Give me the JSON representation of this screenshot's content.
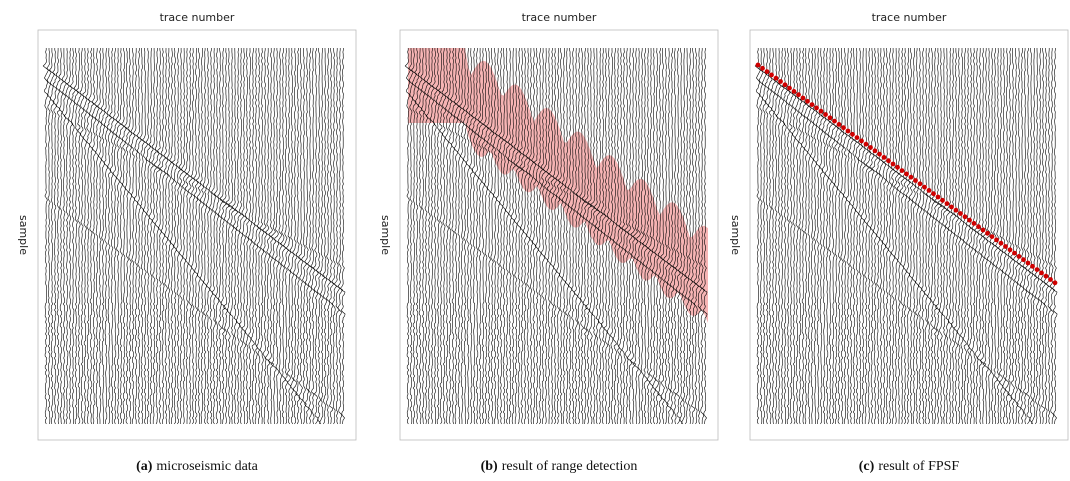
{
  "panels": [
    {
      "x_label": "trace number",
      "y_label": "sample",
      "caption": {
        "tag": "(a)",
        "text": "microseismic data"
      }
    },
    {
      "x_label": "trace number",
      "y_label": "sample",
      "caption": {
        "tag": "(b)",
        "text": "result of range detection"
      }
    },
    {
      "x_label": "trace number",
      "y_label": "sample",
      "caption": {
        "tag": "(c)",
        "text": "result of FPSF"
      }
    }
  ]
}
